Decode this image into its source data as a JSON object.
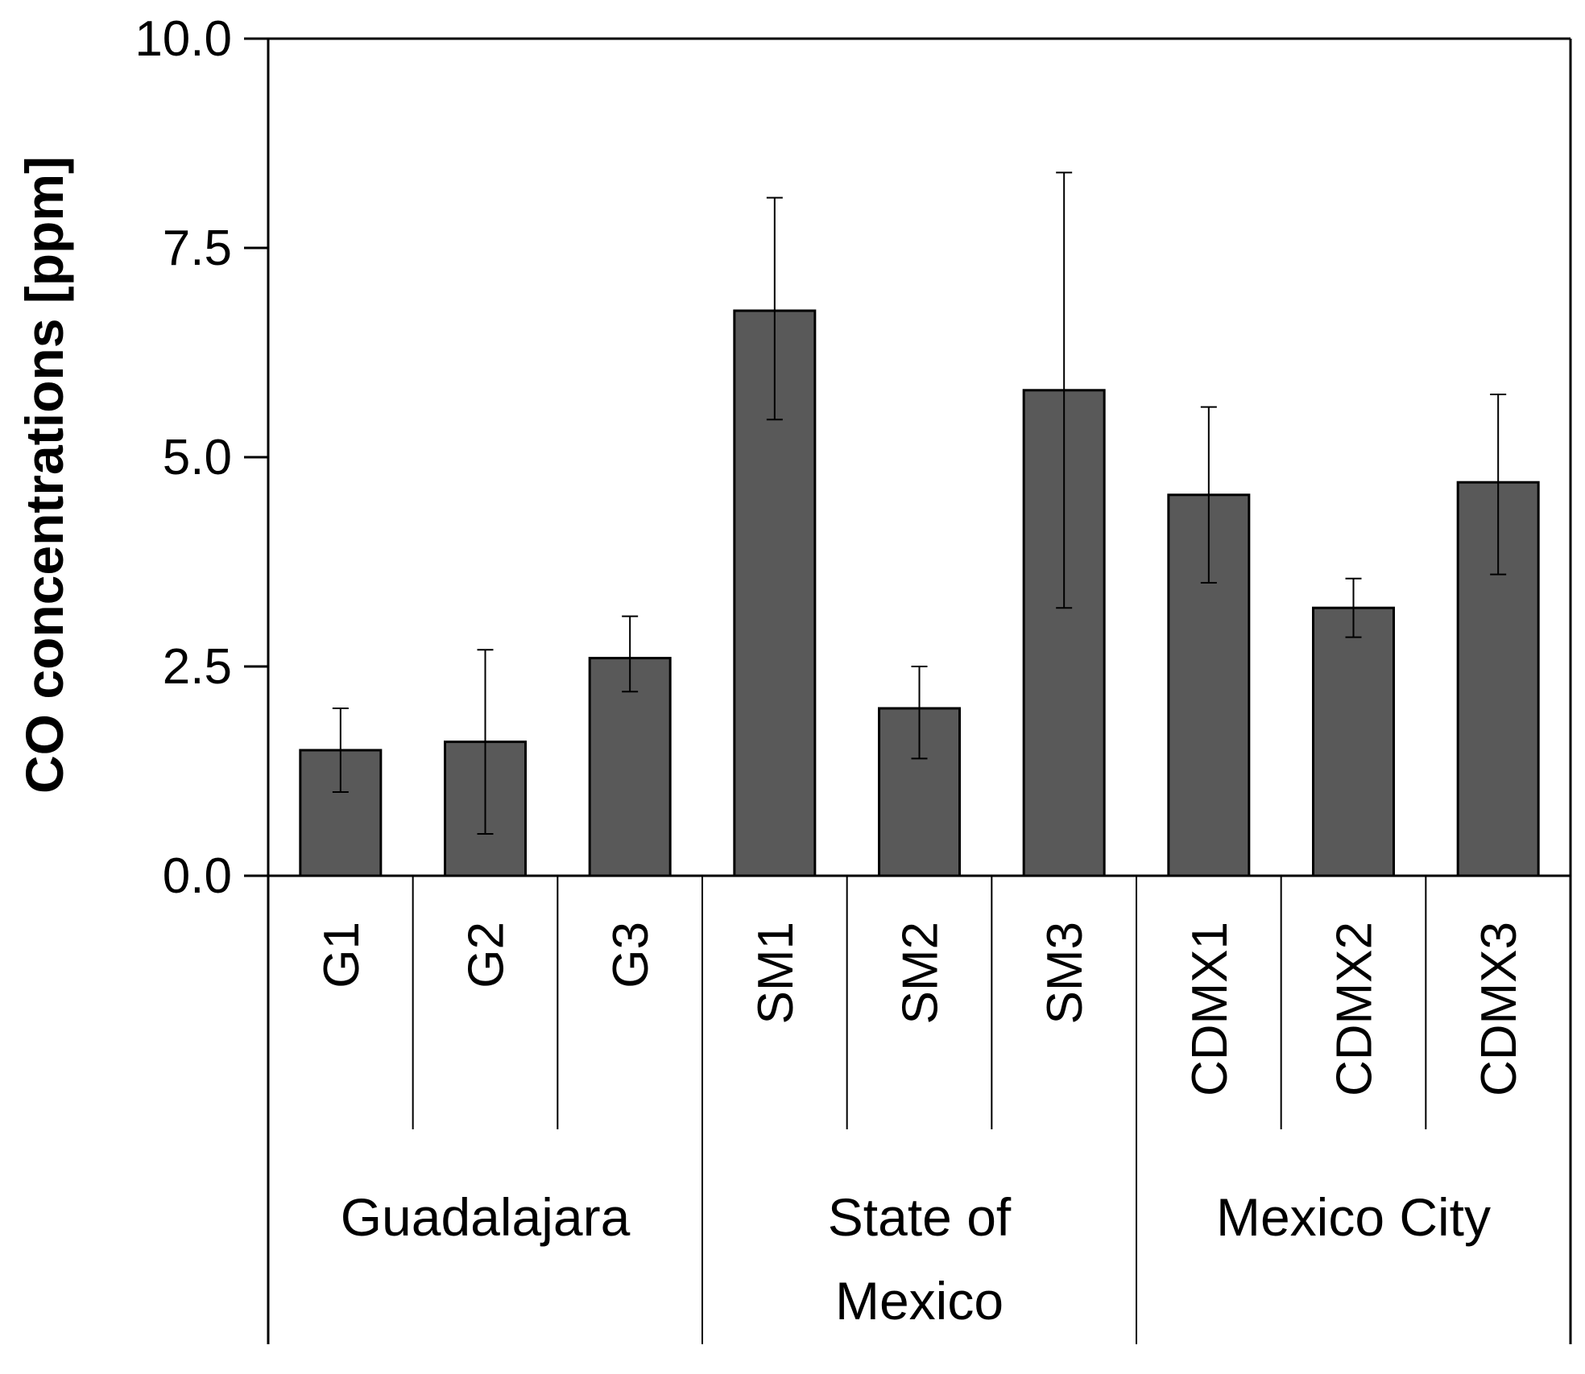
{
  "chart_data": {
    "type": "bar",
    "title": "",
    "xlabel": "",
    "ylabel": "CO concentrations [ppm]",
    "ylim": [
      0,
      10
    ],
    "yticks": [
      "0.0",
      "2.5",
      "5.0",
      "7.5",
      "10.0"
    ],
    "ytick_values": [
      0,
      2.5,
      5,
      7.5,
      10
    ],
    "categories": [
      "G1",
      "G2",
      "G3",
      "SM1",
      "SM2",
      "SM3",
      "CDMX1",
      "CDMX2",
      "CDMX3"
    ],
    "values": [
      1.5,
      1.6,
      2.6,
      6.75,
      2.0,
      5.8,
      4.55,
      3.2,
      4.7
    ],
    "error_low": [
      1.0,
      0.5,
      2.2,
      5.45,
      1.4,
      3.2,
      3.5,
      2.85,
      3.6
    ],
    "error_high": [
      2.0,
      2.7,
      3.1,
      8.1,
      2.5,
      8.4,
      5.6,
      3.55,
      5.75
    ],
    "groups": [
      {
        "label": "Guadalajara",
        "lines": [
          "Guadalajara"
        ],
        "categories": [
          "G1",
          "G2",
          "G3"
        ]
      },
      {
        "label": "State of Mexico",
        "lines": [
          "State of",
          "Mexico"
        ],
        "categories": [
          "SM1",
          "SM2",
          "SM3"
        ]
      },
      {
        "label": "Mexico City",
        "lines": [
          "Mexico City"
        ],
        "categories": [
          "CDMX1",
          "CDMX2",
          "CDMX3"
        ]
      }
    ],
    "bar_color": "#595959",
    "edge_color": "#000000",
    "grid": false,
    "legend": "none"
  }
}
